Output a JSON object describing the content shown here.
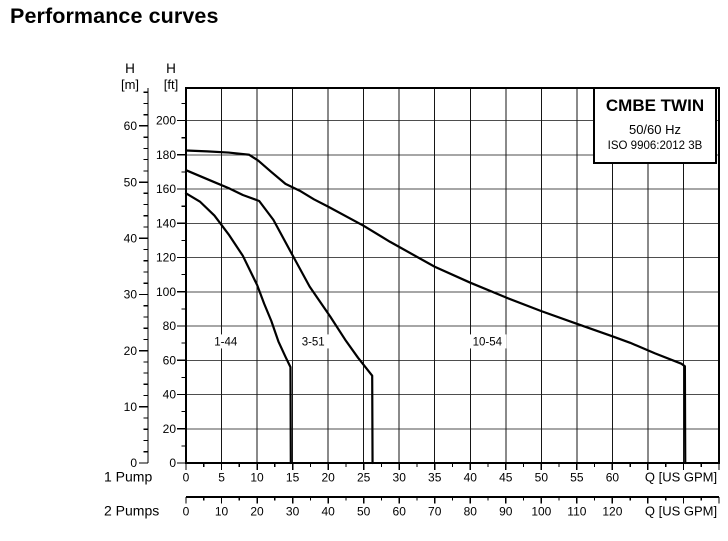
{
  "chart_data": {
    "type": "line",
    "title": "Performance curves",
    "line_color": "#000000",
    "grid": true,
    "legend": {
      "title": "CMBE TWIN",
      "frequency": "50/60 Hz",
      "standard": "ISO 9906:2012 3B",
      "position": "top-right"
    },
    "y_axis_m": {
      "header": "H",
      "unit": "[m]",
      "ticks": [
        0,
        10,
        20,
        30,
        40,
        50,
        60
      ],
      "range": [
        0,
        66.8
      ],
      "minor_step": 2,
      "minor_max": 66
    },
    "y_axis_ft": {
      "header": "H",
      "unit": "[ft]",
      "ticks": [
        0,
        20,
        40,
        60,
        80,
        100,
        120,
        140,
        160,
        180,
        200
      ],
      "range": [
        0,
        219
      ],
      "minor_step": 10,
      "minor_max": 210
    },
    "x_axis_1pump": {
      "label": "1 Pump",
      "unit": "Q [US GPM]",
      "ticks": [
        0,
        5,
        10,
        15,
        20,
        25,
        30,
        35,
        40,
        45,
        50,
        55,
        60
      ],
      "range": [
        0,
        75
      ],
      "minor_step": 2.5
    },
    "x_axis_2pumps": {
      "label": "2 Pumps",
      "unit": "Q [US GPM]",
      "ticks": [
        0,
        10,
        20,
        30,
        40,
        50,
        60,
        70,
        80,
        90,
        100,
        110,
        120
      ],
      "range": [
        0,
        150
      ],
      "minor_step": 5
    },
    "series": [
      {
        "name": "1-44",
        "label_q": 5.6,
        "label_h_ft": 71,
        "points_q_ft": [
          [
            0,
            157.5
          ],
          [
            2,
            152.5
          ],
          [
            4,
            144.5
          ],
          [
            6,
            133.5
          ],
          [
            8,
            121
          ],
          [
            10,
            104
          ],
          [
            11,
            93
          ],
          [
            12,
            83
          ],
          [
            13,
            71
          ],
          [
            14,
            62
          ],
          [
            14.7,
            56
          ],
          [
            14.75,
            0
          ]
        ]
      },
      {
        "name": "3-51",
        "label_q": 17.9,
        "label_h_ft": 71,
        "points_q_ft": [
          [
            0,
            171
          ],
          [
            2,
            167.5
          ],
          [
            4,
            164
          ],
          [
            6,
            160.5
          ],
          [
            8,
            156.5
          ],
          [
            10.3,
            153
          ],
          [
            12.3,
            142
          ],
          [
            15.1,
            120.5
          ],
          [
            17.4,
            103
          ],
          [
            20.3,
            85.5
          ],
          [
            22.4,
            72
          ],
          [
            24.2,
            61.5
          ],
          [
            26.2,
            51
          ],
          [
            26.25,
            0
          ]
        ]
      },
      {
        "name": "10-54",
        "label_q": 42.4,
        "label_h_ft": 71,
        "points_q_ft": [
          [
            0,
            182.5
          ],
          [
            3,
            182
          ],
          [
            6,
            181.3
          ],
          [
            8.9,
            180
          ],
          [
            10.2,
            176.5
          ],
          [
            12,
            170
          ],
          [
            14,
            163
          ],
          [
            16,
            159
          ],
          [
            18,
            154
          ],
          [
            20,
            149.7
          ],
          [
            25,
            138.5
          ],
          [
            28.7,
            129.2
          ],
          [
            35,
            114.6
          ],
          [
            40,
            105.3
          ],
          [
            45,
            96.7
          ],
          [
            50,
            88.7
          ],
          [
            55,
            81.3
          ],
          [
            60,
            74
          ],
          [
            62.5,
            70.2
          ],
          [
            66,
            64
          ],
          [
            69.7,
            58
          ],
          [
            70.2,
            56.5
          ],
          [
            70.25,
            0
          ]
        ]
      }
    ]
  }
}
